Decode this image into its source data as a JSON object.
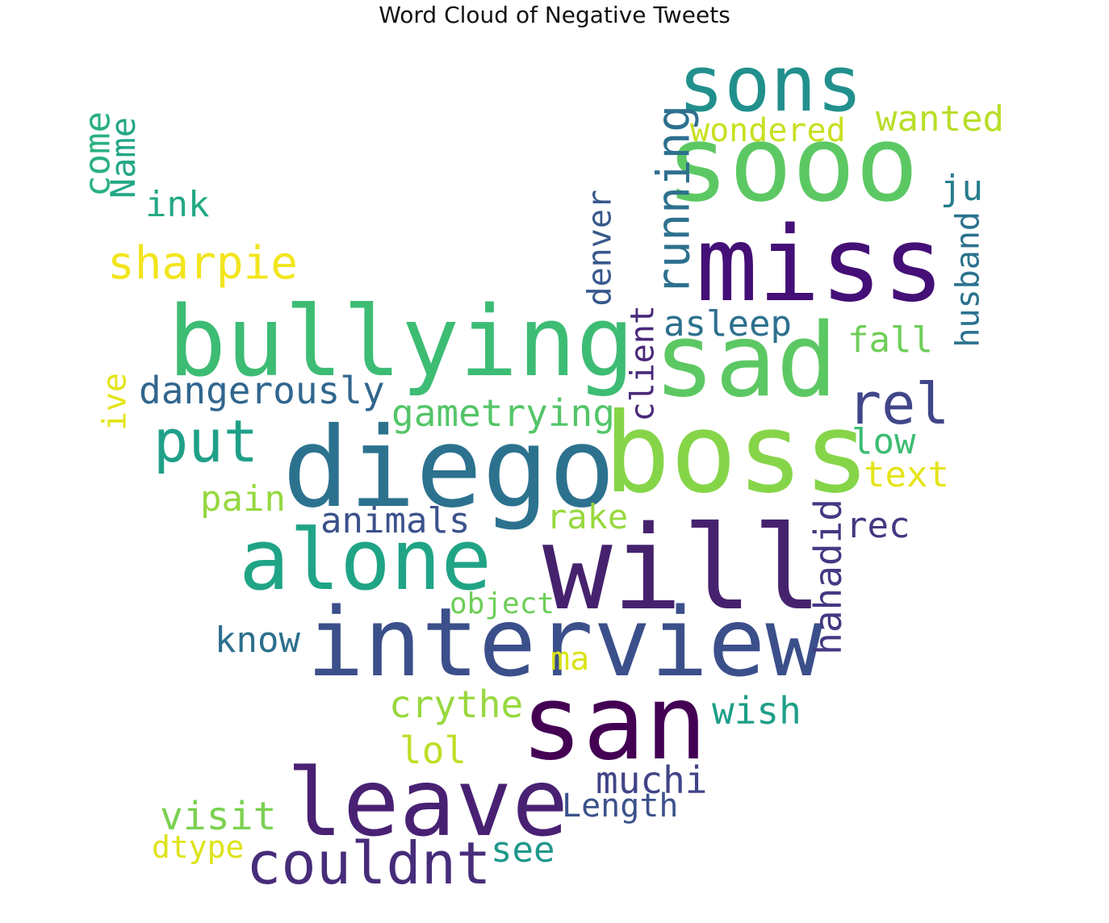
{
  "title": "Word Cloud of Negative Tweets",
  "words": [
    {
      "text": "sooo",
      "color": "#5cc863"
    },
    {
      "text": "sons",
      "color": "#21908d"
    },
    {
      "text": "miss",
      "color": "#440f76"
    },
    {
      "text": "sad",
      "color": "#5cc863"
    },
    {
      "text": "bullying",
      "color": "#3dbc74"
    },
    {
      "text": "diego",
      "color": "#2c728e"
    },
    {
      "text": "boss",
      "color": "#86d549"
    },
    {
      "text": "will",
      "color": "#46226e"
    },
    {
      "text": "interview",
      "color": "#3b4f8a"
    },
    {
      "text": "san",
      "color": "#440154"
    },
    {
      "text": "leave",
      "color": "#482173"
    },
    {
      "text": "alone",
      "color": "#20a486"
    },
    {
      "text": "couldnt",
      "color": "#472c7a"
    },
    {
      "text": "running",
      "color": "#2d708e"
    },
    {
      "text": "put",
      "color": "#1fa088"
    },
    {
      "text": "sharpie",
      "color": "#f2e51d"
    },
    {
      "text": "dangerously",
      "color": "#31668e"
    },
    {
      "text": "rel",
      "color": "#404688"
    },
    {
      "text": "gametrying",
      "color": "#54c568"
    },
    {
      "text": "wondered",
      "color": "#c8e020"
    },
    {
      "text": "wanted",
      "color": "#b8de29"
    },
    {
      "text": "ink",
      "color": "#23a983"
    },
    {
      "text": "come",
      "color": "#2ab07f"
    },
    {
      "text": "Name",
      "color": "#22a785"
    },
    {
      "text": "ju",
      "color": "#287c8e"
    },
    {
      "text": "husband",
      "color": "#2c728e"
    },
    {
      "text": "denver",
      "color": "#38588c"
    },
    {
      "text": "client",
      "color": "#482979"
    },
    {
      "text": "asleep",
      "color": "#2d708e"
    },
    {
      "text": "fall",
      "color": "#6ece58"
    },
    {
      "text": "ive",
      "color": "#e2e418"
    },
    {
      "text": "low",
      "color": "#3dbc74"
    },
    {
      "text": "text",
      "color": "#e5e419"
    },
    {
      "text": "pain",
      "color": "#95d840"
    },
    {
      "text": "animals",
      "color": "#3b528b"
    },
    {
      "text": "rake",
      "color": "#98d83e"
    },
    {
      "text": "rec",
      "color": "#453781"
    },
    {
      "text": "hahadid",
      "color": "#443983"
    },
    {
      "text": "object",
      "color": "#6ece58"
    },
    {
      "text": "know",
      "color": "#2d708e"
    },
    {
      "text": "ma",
      "color": "#dae319"
    },
    {
      "text": "crythe",
      "color": "#98d83e"
    },
    {
      "text": "wish",
      "color": "#1f9e89"
    },
    {
      "text": "lol",
      "color": "#bddf26"
    },
    {
      "text": "muchi",
      "color": "#414487"
    },
    {
      "text": "Length",
      "color": "#3b528b"
    },
    {
      "text": "visit",
      "color": "#7ad151"
    },
    {
      "text": "dtype",
      "color": "#dde318"
    },
    {
      "text": "see",
      "color": "#1f988b"
    }
  ]
}
